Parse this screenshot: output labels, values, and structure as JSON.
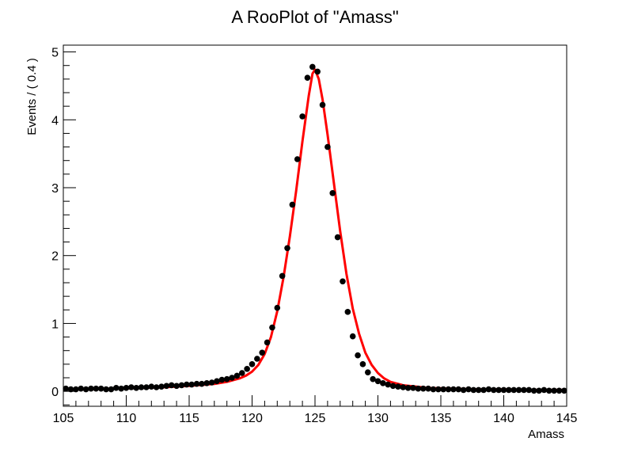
{
  "chart_data": {
    "type": "scatter",
    "title": "A RooPlot of \"Amass\"",
    "xlabel": "Amass",
    "ylabel": "Events / ( 0.4 )",
    "xlim": [
      105,
      145
    ],
    "ylim": [
      -0.22,
      5.1
    ],
    "xticks": [
      105,
      110,
      115,
      120,
      125,
      130,
      135,
      140,
      145
    ],
    "yticks": [
      0,
      1,
      2,
      3,
      4,
      5
    ],
    "grid": false,
    "legend": "none",
    "colors": {
      "points": "#000000",
      "fit": "#ff0000",
      "frame": "#000000"
    },
    "series": [
      {
        "kind": "points-with-errors",
        "x": [
          105.2,
          105.6,
          106.0,
          106.4,
          106.8,
          107.2,
          107.6,
          108.0,
          108.4,
          108.8,
          109.2,
          109.6,
          110.0,
          110.4,
          110.8,
          111.2,
          111.6,
          112.0,
          112.4,
          112.8,
          113.2,
          113.6,
          114.0,
          114.4,
          114.8,
          115.2,
          115.6,
          116.0,
          116.4,
          116.8,
          117.2,
          117.6,
          118.0,
          118.4,
          118.8,
          119.2,
          119.6,
          120.0,
          120.4,
          120.8,
          121.2,
          121.6,
          122.0,
          122.4,
          122.8,
          123.2,
          123.6,
          124.0,
          124.4,
          124.8,
          125.2,
          125.6,
          126.0,
          126.4,
          126.8,
          127.2,
          127.6,
          128.0,
          128.4,
          128.8,
          129.2,
          129.6,
          130.0,
          130.4,
          130.8,
          131.2,
          131.6,
          132.0,
          132.4,
          132.8,
          133.2,
          133.6,
          134.0,
          134.4,
          134.8,
          135.2,
          135.6,
          136.0,
          136.4,
          136.8,
          137.2,
          137.6,
          138.0,
          138.4,
          138.8,
          139.2,
          139.6,
          140.0,
          140.4,
          140.8,
          141.2,
          141.6,
          142.0,
          142.4,
          142.8,
          143.2,
          143.6,
          144.0,
          144.4,
          144.8
        ],
        "y": [
          0.04,
          0.03,
          0.03,
          0.04,
          0.03,
          0.04,
          0.04,
          0.04,
          0.03,
          0.03,
          0.05,
          0.04,
          0.05,
          0.06,
          0.05,
          0.06,
          0.06,
          0.07,
          0.06,
          0.07,
          0.08,
          0.09,
          0.08,
          0.09,
          0.1,
          0.1,
          0.11,
          0.11,
          0.12,
          0.13,
          0.15,
          0.17,
          0.18,
          0.2,
          0.23,
          0.27,
          0.33,
          0.4,
          0.48,
          0.57,
          0.72,
          0.94,
          1.23,
          1.7,
          2.11,
          2.75,
          3.42,
          4.05,
          4.62,
          4.78,
          4.71,
          4.22,
          3.6,
          2.92,
          2.27,
          1.62,
          1.17,
          0.81,
          0.53,
          0.4,
          0.28,
          0.18,
          0.15,
          0.12,
          0.1,
          0.08,
          0.07,
          0.06,
          0.05,
          0.05,
          0.04,
          0.04,
          0.04,
          0.03,
          0.03,
          0.03,
          0.03,
          0.03,
          0.03,
          0.02,
          0.03,
          0.02,
          0.02,
          0.02,
          0.03,
          0.02,
          0.02,
          0.02,
          0.02,
          0.02,
          0.02,
          0.02,
          0.02,
          0.01,
          0.01,
          0.02,
          0.01,
          0.01,
          0.01,
          0.01
        ],
        "yerr": 0.04
      },
      {
        "kind": "fit-curve",
        "x": [
          105,
          107,
          109,
          111,
          113,
          115,
          117,
          118,
          119,
          119.5,
          120,
          120.5,
          121,
          121.5,
          122,
          122.5,
          123,
          123.5,
          124,
          124.5,
          124.8,
          125,
          125.3,
          125.6,
          126,
          126.5,
          127,
          127.5,
          128,
          128.5,
          129,
          129.5,
          130,
          130.5,
          131,
          132,
          133,
          134,
          136,
          138,
          140,
          142,
          145
        ],
        "y": [
          0.03,
          0.03,
          0.04,
          0.05,
          0.06,
          0.08,
          0.11,
          0.14,
          0.19,
          0.23,
          0.29,
          0.39,
          0.55,
          0.8,
          1.18,
          1.68,
          2.28,
          2.95,
          3.68,
          4.35,
          4.68,
          4.74,
          4.6,
          4.3,
          3.78,
          3.07,
          2.36,
          1.73,
          1.22,
          0.85,
          0.57,
          0.39,
          0.27,
          0.19,
          0.14,
          0.09,
          0.07,
          0.05,
          0.04,
          0.03,
          0.03,
          0.02,
          0.02
        ]
      }
    ]
  }
}
